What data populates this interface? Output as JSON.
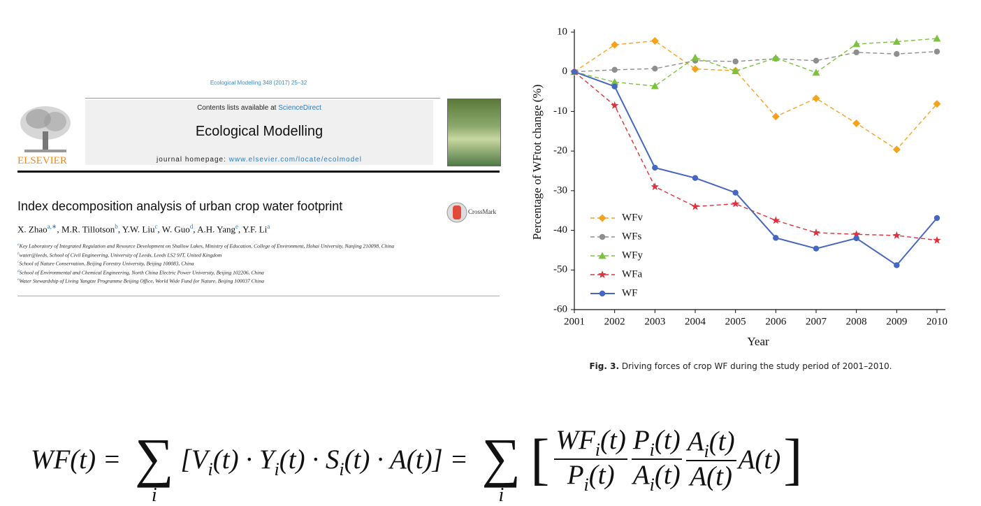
{
  "paper": {
    "journal_ref": "Ecological Modelling 348 (2017) 25–32",
    "contents_prefix": "Contents lists available at ",
    "contents_link": "ScienceDirect",
    "journal_name": "Ecological Modelling",
    "homepage_prefix": "journal homepage: ",
    "homepage_url": "www.elsevier.com/locate/ecolmodel",
    "publisher": "ELSEVIER",
    "title": "Index decomposition analysis of urban crop water footprint",
    "crossmark": "CrossMark",
    "author_separator": ", ",
    "authors": [
      {
        "name": "X. Zhao",
        "affiliation": "a,∗"
      },
      {
        "name": "M.R. Tillotson",
        "affiliation": "b"
      },
      {
        "name": "Y.W. Liu",
        "affiliation": "c"
      },
      {
        "name": "W. Guo",
        "affiliation": "d"
      },
      {
        "name": "A.H. Yang",
        "affiliation": "e"
      },
      {
        "name": "Y.F. Li",
        "affiliation": "a"
      }
    ],
    "affiliations": [
      {
        "mark": "a",
        "text": "Key Laboratory of Integrated Regulation and Resource Development on Shallow Lakes, Ministry of Education, College of Environment, Hohai University, Nanjing 210098, China"
      },
      {
        "mark": "b",
        "text": "water@leeds, School of Civil Engineering, University of Leeds, Leeds LS2 9JT, United Kingdom"
      },
      {
        "mark": "c",
        "text": "School of Nature Conservation, Beijing Forestry University, Beijing 100083, China"
      },
      {
        "mark": "d",
        "text": "School of Environmental and Chemical Engineering, North China Electric Power University, Beijing 102206, China"
      },
      {
        "mark": "e",
        "text": "Water Stewardship of Living Yangtze Programme Beijing Office, World Wide Fund for Nature, Beijing 100037 China"
      }
    ]
  },
  "chart_data": {
    "type": "line",
    "y_label": "Percentage of WFtot change (%)",
    "x_label": "Year",
    "caption_label": "Fig. 3.",
    "caption": "Driving forces of crop WF during the study period of 2001–2010.",
    "x": [
      2001,
      2002,
      2003,
      2004,
      2005,
      2006,
      2007,
      2008,
      2009,
      2010
    ],
    "xlim": [
      2001,
      2010
    ],
    "xticks": [
      2001,
      2002,
      2003,
      2004,
      2005,
      2006,
      2007,
      2008,
      2009,
      2010
    ],
    "ylim": [
      -60,
      10
    ],
    "yticks": [
      -60,
      -50,
      -40,
      -30,
      -20,
      -10,
      0,
      10
    ],
    "legend": "lower left",
    "series": [
      {
        "name": "WFv",
        "color": "#f5a31f",
        "marker": "diamond",
        "dashed": true,
        "values": [
          0,
          6.8,
          7.8,
          0.7,
          0.3,
          -11.3,
          -6.7,
          -13,
          -19.6,
          -8.1
        ]
      },
      {
        "name": "WFs",
        "color": "#8e8e8e",
        "marker": "circle",
        "dashed": true,
        "values": [
          0,
          0.5,
          0.8,
          2.8,
          2.6,
          3.3,
          2.8,
          4.9,
          4.5,
          5.1
        ]
      },
      {
        "name": "WFy",
        "color": "#7cc23f",
        "marker": "triangle",
        "dashed": true,
        "values": [
          0,
          -2.6,
          -3.6,
          3.6,
          0.2,
          3.5,
          -0.2,
          7,
          7.6,
          8.4
        ]
      },
      {
        "name": "WFa",
        "color": "#e0303c",
        "marker": "star",
        "dashed": true,
        "values": [
          0,
          -8.5,
          -29,
          -34,
          -33.3,
          -37.5,
          -40.6,
          -41,
          -41.3,
          -42.5
        ]
      },
      {
        "name": "WF",
        "color": "#4666bf",
        "marker": "circle",
        "dashed": false,
        "values": [
          0,
          -3.7,
          -24.2,
          -26.8,
          -30.5,
          -41.9,
          -44.6,
          -42,
          -48.8,
          -36.9
        ]
      }
    ]
  },
  "formula": {
    "lhs": "WF(t) = ",
    "sum_symbol": "∑",
    "sum_index": "i",
    "middle": [
      "[V",
      "i",
      "(t) · Y",
      "i",
      "(t) · S",
      "i",
      "(t) · A(t)] = "
    ],
    "open": "[",
    "fractions": [
      {
        "num": [
          "WF",
          "i",
          "(t)"
        ],
        "den": [
          "P",
          "i",
          "(t)"
        ]
      },
      {
        "num": [
          "P",
          "i",
          "(t)"
        ],
        "den": [
          "A",
          "i",
          "(t)"
        ]
      },
      {
        "num": [
          "A",
          "i",
          "(t)"
        ],
        "den": [
          "A(t)"
        ]
      }
    ],
    "tail": "A(t)",
    "close": "]"
  }
}
